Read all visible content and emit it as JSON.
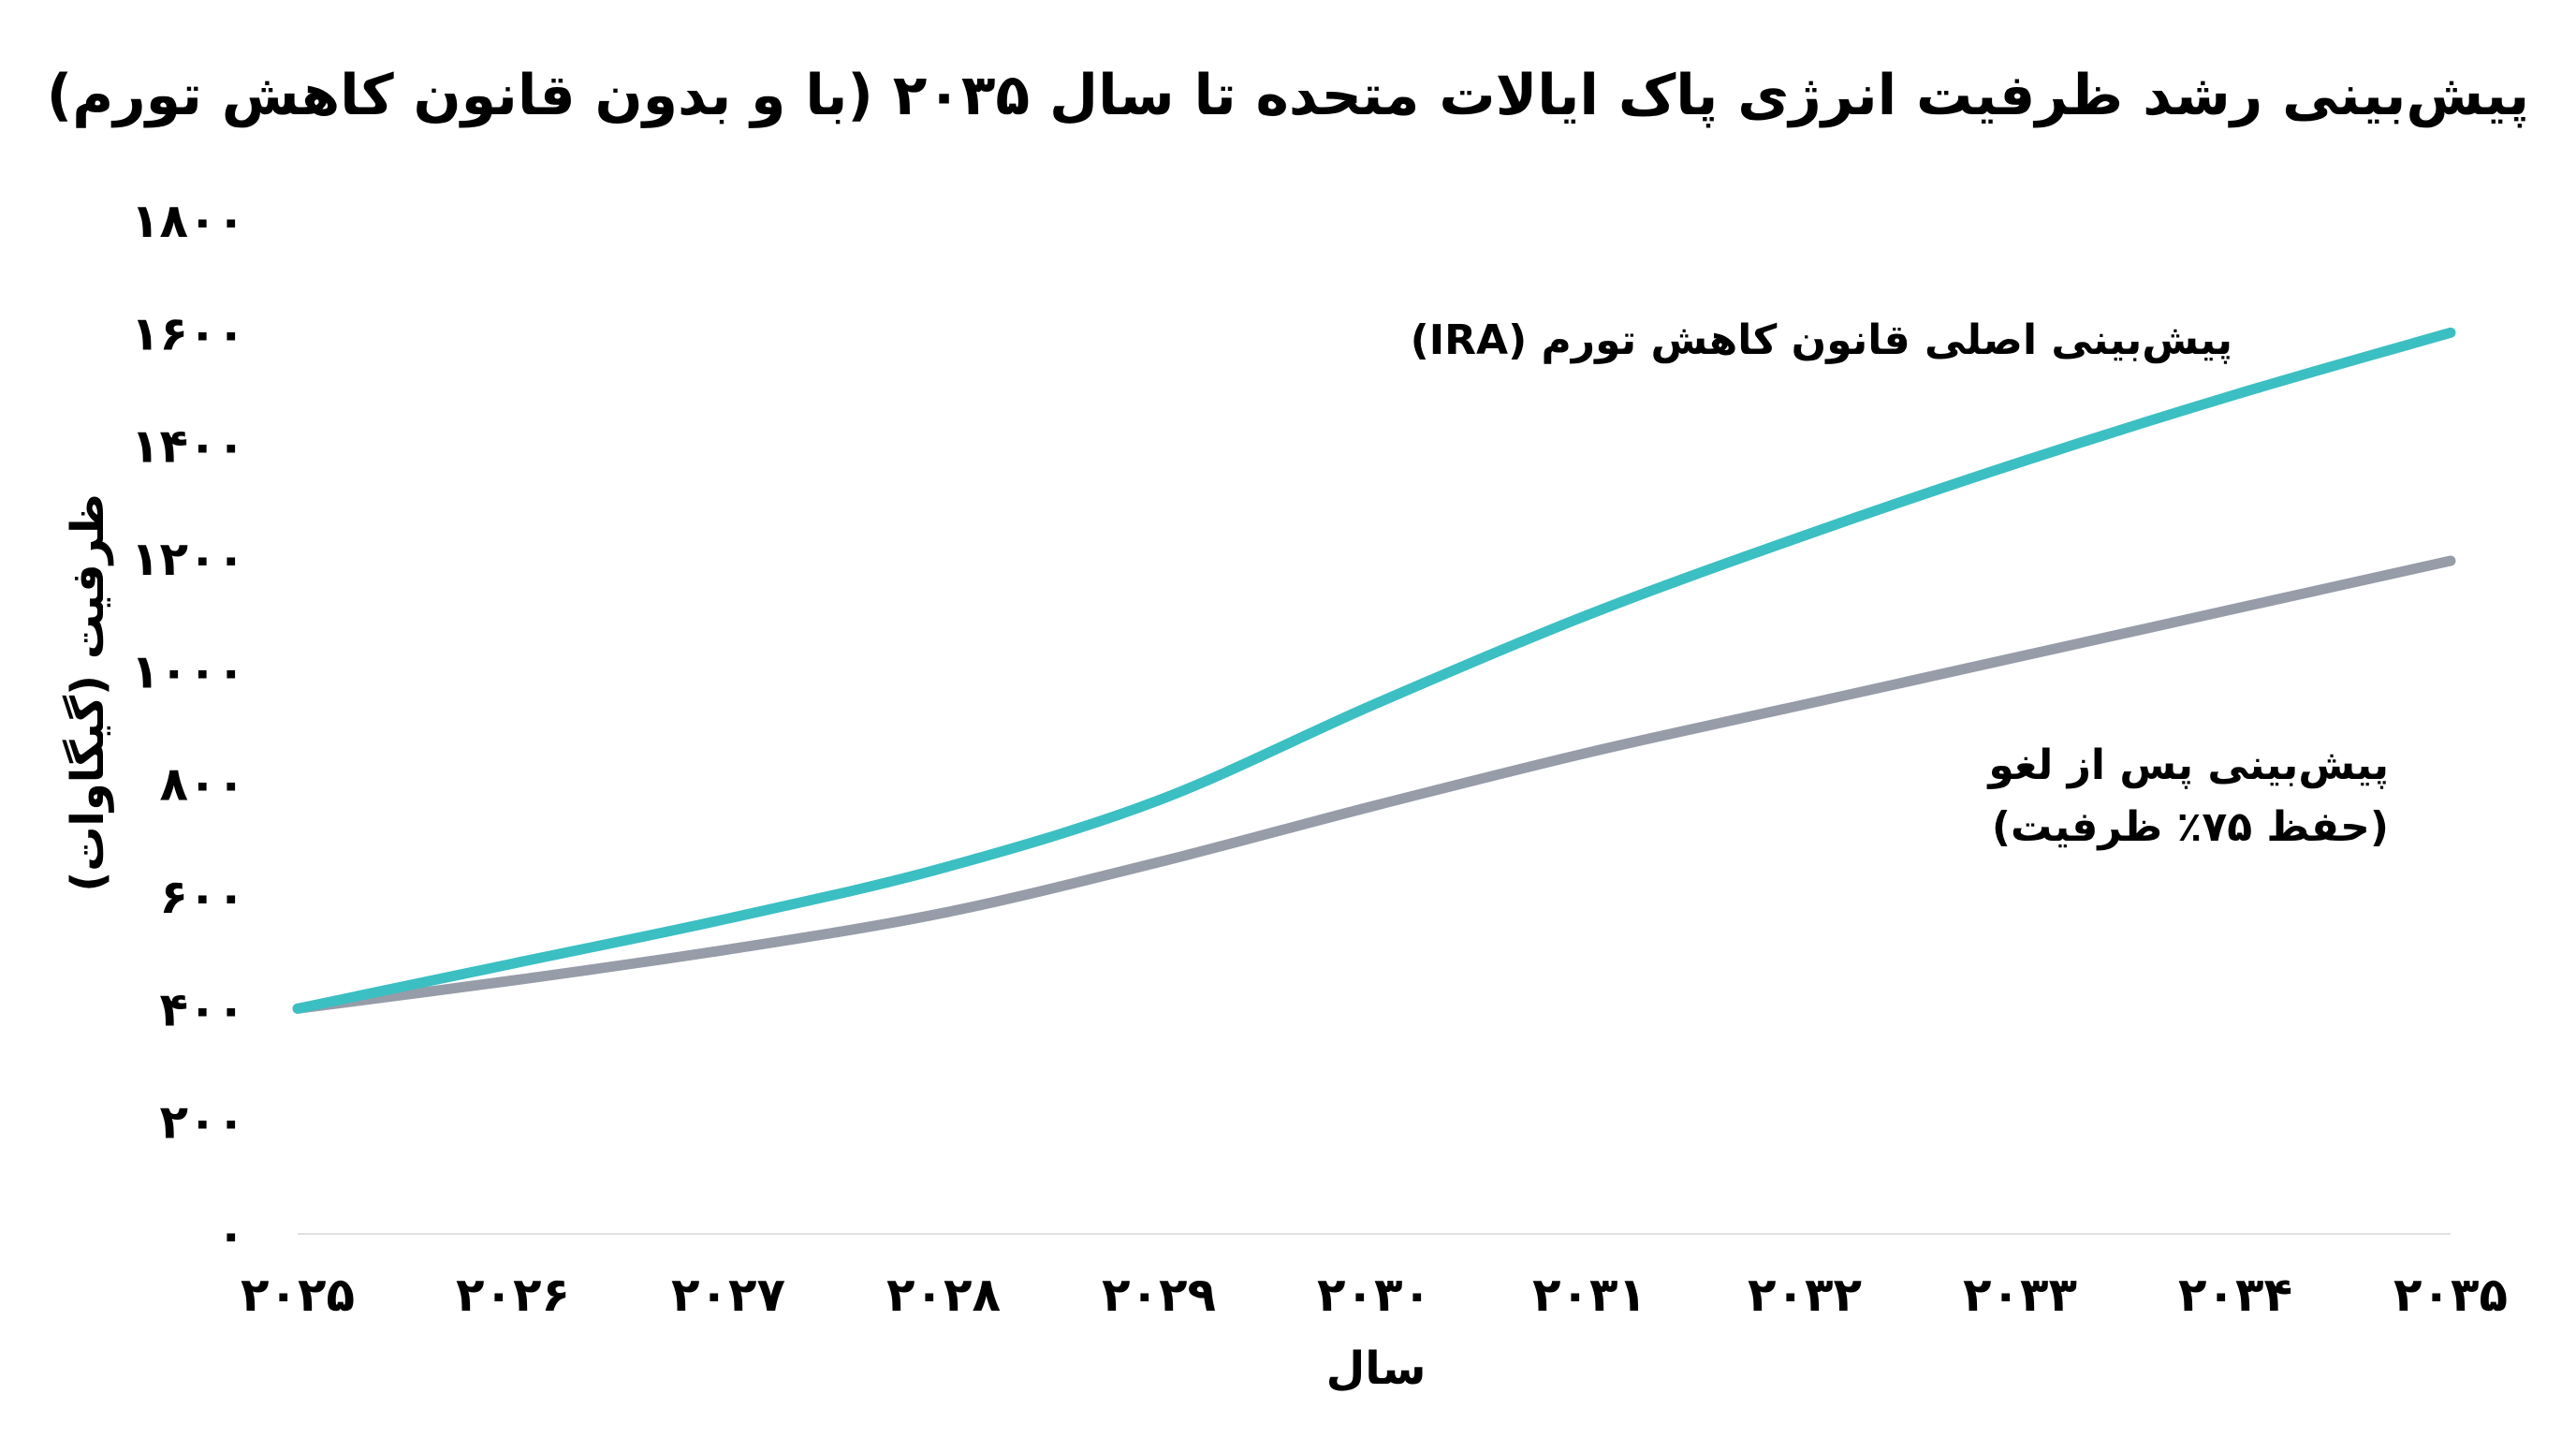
{
  "chart_data": {
    "type": "line",
    "title": "پیش‌بینی رشد ظرفیت انرژی پاک ایالات متحده تا سال ۲۰۳۵ (با و بدون قانون کاهش تورم)",
    "xlabel": "سال",
    "ylabel": "ظرفیت (گیگاوات)",
    "x": [
      2025,
      2026,
      2027,
      2028,
      2029,
      2030,
      2031,
      2032,
      2033,
      2034,
      2035
    ],
    "x_tick_labels": [
      "۲۰۲۵",
      "۲۰۲۶",
      "۲۰۲۷",
      "۲۰۲۸",
      "۲۰۲۹",
      "۲۰۳۰",
      "۲۰۳۱",
      "۲۰۳۲",
      "۲۰۳۳",
      "۲۰۳۴",
      "۲۰۳۵"
    ],
    "y_ticks": [
      0,
      200,
      400,
      600,
      800,
      1000,
      1200,
      1400,
      1600,
      1800
    ],
    "y_tick_labels": [
      "۰",
      "۲۰۰",
      "۴۰۰",
      "۶۰۰",
      "۸۰۰",
      "۱۰۰۰",
      "۱۲۰۰",
      "۱۴۰۰",
      "۱۶۰۰",
      "۱۸۰۰"
    ],
    "ylim": [
      0,
      1800
    ],
    "grid": false,
    "legend": "none",
    "series": [
      {
        "label_lines": [
          "پیش‌بینی اصلی قانون کاهش تورم (IRA)"
        ],
        "color": "#3bbfc2",
        "values": [
          400,
          480,
          560,
          650,
          770,
          940,
          1100,
          1240,
          1370,
          1490,
          1600
        ]
      },
      {
        "label_lines": [
          "پیش‌بینی پس از لغو",
          "(حفظ ۷۵٪ ظرفیت)"
        ],
        "color": "#969ca8",
        "values": [
          400,
          450,
          505,
          570,
          660,
          760,
          855,
          940,
          1025,
          1110,
          1195
        ]
      }
    ]
  }
}
